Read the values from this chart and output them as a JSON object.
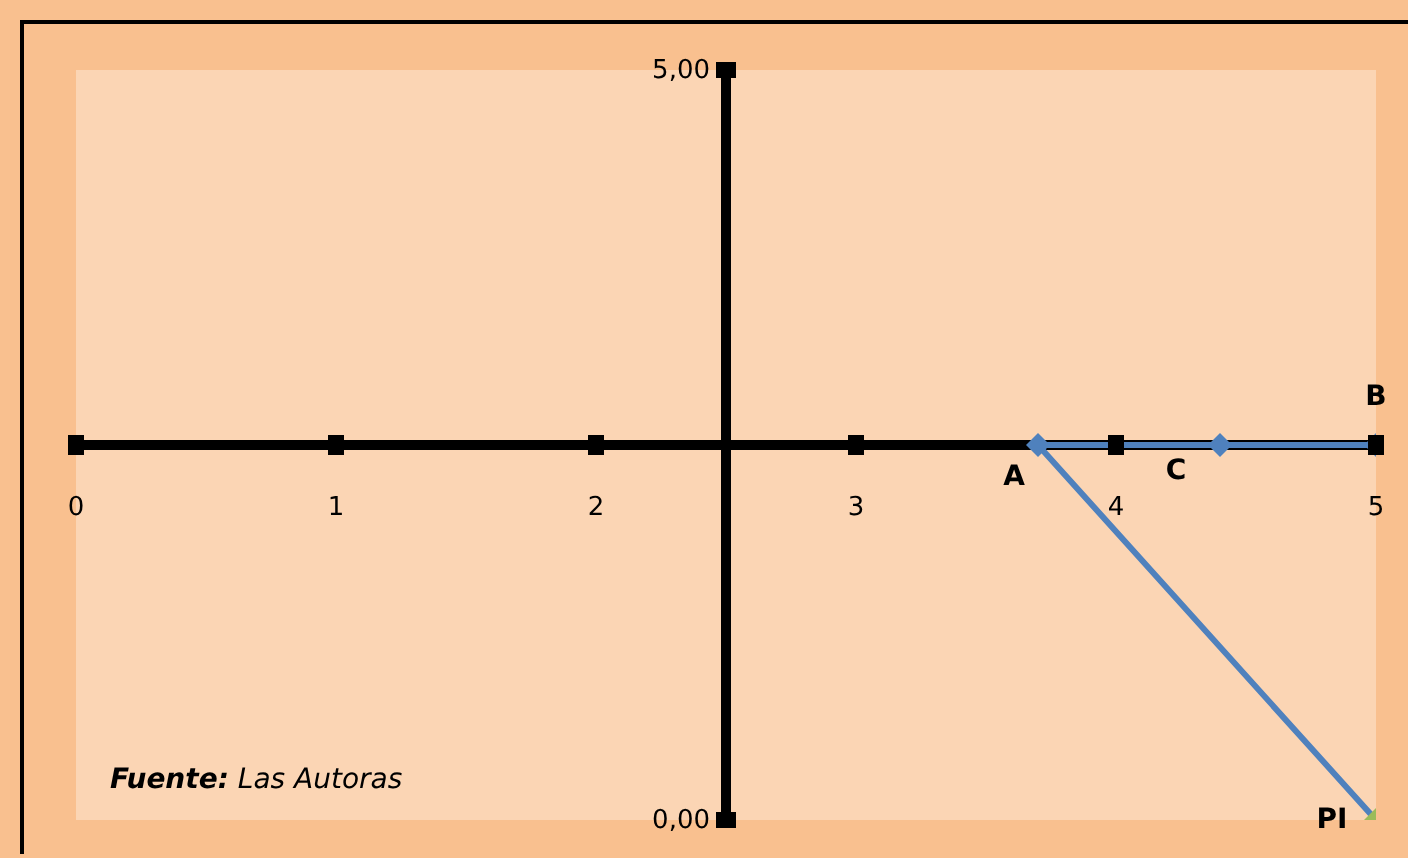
{
  "chart_data": {
    "type": "line",
    "x": [
      5,
      3.7,
      5,
      4.4
    ],
    "series": [
      {
        "color": "#4f81bd",
        "colors": [
          "#9bbb59",
          "#4f81bd",
          "#4f81bd",
          "#4f81bd"
        ],
        "values": [
          0,
          2.5,
          2.5,
          2.5
        ]
      }
    ],
    "marker": "diamond",
    "xlim": [
      0,
      5
    ],
    "xticks": [
      0,
      1,
      2,
      3,
      4,
      5
    ],
    "ylim": [
      0,
      5
    ],
    "yticks": [
      {
        "value": 0,
        "label": "0,00"
      },
      {
        "value": 5,
        "label": "5,00"
      }
    ],
    "annotations": [
      {
        "text": "A",
        "x": 3.7,
        "y": 2.5
      },
      {
        "text": "B",
        "x": 5,
        "y": 2.5
      },
      {
        "text": "C",
        "x": 4.4,
        "y": 2.5
      },
      {
        "text": "PI",
        "x": 5,
        "y": 0
      },
      "Fuente: Las Autoras"
    ]
  }
}
